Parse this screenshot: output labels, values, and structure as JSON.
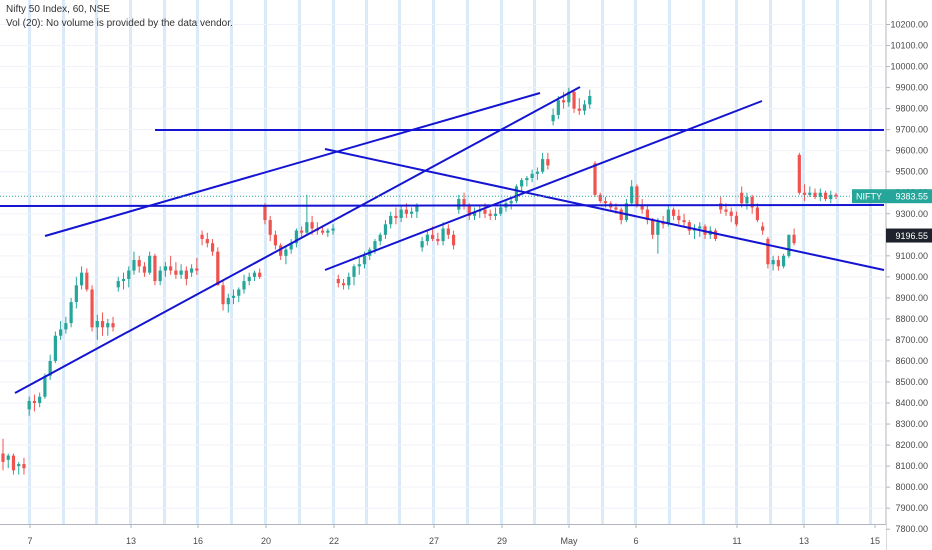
{
  "header": {
    "symbol": "Nifty 50 Index, 60, NSE",
    "volume_note": "Vol (20): No volume is provided by the data vendor."
  },
  "colors": {
    "up": "#26a69a",
    "down": "#ef5350",
    "trendline": "#1414d2",
    "session_band": "#dbeaf8",
    "last_price_line": "#26a69a",
    "badge_dark": "#1e222d"
  },
  "chart_data": {
    "type": "candlestick",
    "ylim": [
      7700,
      10350
    ],
    "y_ticks": [
      "10200.00",
      "10100.00",
      "10000.00",
      "9900.00",
      "9800.00",
      "9700.00",
      "9600.00",
      "9500.00",
      "9400.00",
      "9300.00",
      "9200.00",
      "9100.00",
      "9000.00",
      "8900.00",
      "8800.00",
      "8700.00",
      "8600.00",
      "8500.00",
      "8400.00",
      "8300.00",
      "8200.00",
      "8100.00",
      "8000.00",
      "7900.00",
      "7800.00"
    ],
    "x_labels": [
      "7",
      "13",
      "16",
      "20",
      "22",
      "27",
      "29",
      "May",
      "6",
      "11",
      "13",
      "15"
    ],
    "price_labels": [
      {
        "label": "NIFTY",
        "value": "9383.55",
        "style": "teal"
      },
      {
        "label": "",
        "value": "9196.55",
        "style": "dark"
      }
    ],
    "last_price": 9383.55,
    "key_price": 9196.55,
    "candles": [
      [
        8160,
        8230,
        8080,
        8120
      ],
      [
        8130,
        8160,
        8090,
        8150
      ],
      [
        8150,
        8160,
        8060,
        8080
      ],
      [
        8100,
        8120,
        8060,
        8110
      ],
      [
        8110,
        8140,
        8060,
        8090
      ],
      [
        8370,
        8430,
        8340,
        8410
      ],
      [
        8410,
        8440,
        8360,
        8400
      ],
      [
        8400,
        8450,
        8380,
        8430
      ],
      [
        8430,
        8540,
        8420,
        8530
      ],
      [
        8530,
        8630,
        8510,
        8600
      ],
      [
        8600,
        8740,
        8590,
        8720
      ],
      [
        8720,
        8790,
        8700,
        8750
      ],
      [
        8750,
        8810,
        8730,
        8780
      ],
      [
        8780,
        8900,
        8760,
        8880
      ],
      [
        8880,
        9000,
        8850,
        8960
      ],
      [
        8960,
        9050,
        8940,
        9020
      ],
      [
        9020,
        9040,
        8930,
        8940
      ],
      [
        8940,
        8960,
        8740,
        8760
      ],
      [
        8760,
        8820,
        8700,
        8790
      ],
      [
        8790,
        8830,
        8720,
        8760
      ],
      [
        8760,
        8800,
        8720,
        8780
      ],
      [
        8780,
        8810,
        8740,
        8760
      ],
      [
        8950,
        9000,
        8930,
        8980
      ],
      [
        8980,
        9020,
        8940,
        8990
      ],
      [
        8990,
        9050,
        8950,
        9030
      ],
      [
        9030,
        9120,
        9010,
        9080
      ],
      [
        9080,
        9100,
        9020,
        9050
      ],
      [
        9050,
        9070,
        9000,
        9020
      ],
      [
        9020,
        9120,
        9010,
        9100
      ],
      [
        9100,
        9110,
        8960,
        8980
      ],
      [
        8980,
        9050,
        8960,
        9030
      ],
      [
        9030,
        9070,
        9000,
        9050
      ],
      [
        9050,
        9100,
        9010,
        9030
      ],
      [
        9030,
        9070,
        8990,
        9010
      ],
      [
        9010,
        9060,
        8990,
        9030
      ],
      [
        9030,
        9050,
        8960,
        8990
      ],
      [
        9020,
        9060,
        9000,
        9040
      ],
      [
        9040,
        9090,
        9010,
        9030
      ],
      [
        9200,
        9220,
        9150,
        9180
      ],
      [
        9180,
        9210,
        9140,
        9160
      ],
      [
        9160,
        9180,
        9100,
        9120
      ],
      [
        9120,
        9140,
        8960,
        8960
      ],
      [
        8960,
        8980,
        8840,
        8870
      ],
      [
        8870,
        8920,
        8830,
        8900
      ],
      [
        8900,
        8940,
        8870,
        8910
      ],
      [
        8910,
        8950,
        8880,
        8940
      ],
      [
        8940,
        9010,
        8920,
        8980
      ],
      [
        8980,
        9020,
        8960,
        9000
      ],
      [
        9000,
        9030,
        8980,
        9020
      ],
      [
        9020,
        9040,
        8990,
        9000
      ],
      [
        9340,
        9350,
        9250,
        9270
      ],
      [
        9270,
        9290,
        9170,
        9200
      ],
      [
        9200,
        9220,
        9130,
        9150
      ],
      [
        9150,
        9160,
        9080,
        9100
      ],
      [
        9100,
        9150,
        9060,
        9130
      ],
      [
        9130,
        9180,
        9110,
        9160
      ],
      [
        9160,
        9230,
        9140,
        9220
      ],
      [
        9220,
        9240,
        9190,
        9210
      ],
      [
        9210,
        9390,
        9200,
        9260
      ],
      [
        9260,
        9290,
        9200,
        9230
      ],
      [
        9230,
        9260,
        9200,
        9220
      ],
      [
        9220,
        9240,
        9200,
        9210
      ],
      [
        9210,
        9230,
        9190,
        9220
      ],
      [
        9220,
        9250,
        9200,
        9230
      ],
      [
        8990,
        9010,
        8950,
        8970
      ],
      [
        8970,
        8990,
        8940,
        8960
      ],
      [
        8960,
        9020,
        8940,
        9000
      ],
      [
        9000,
        9060,
        8960,
        9050
      ],
      [
        9050,
        9090,
        9010,
        9060
      ],
      [
        9060,
        9120,
        9040,
        9100
      ],
      [
        9100,
        9140,
        9080,
        9130
      ],
      [
        9130,
        9180,
        9110,
        9170
      ],
      [
        9170,
        9210,
        9150,
        9200
      ],
      [
        9200,
        9270,
        9180,
        9250
      ],
      [
        9250,
        9310,
        9230,
        9290
      ],
      [
        9290,
        9330,
        9250,
        9280
      ],
      [
        9280,
        9340,
        9260,
        9320
      ],
      [
        9320,
        9350,
        9280,
        9300
      ],
      [
        9300,
        9330,
        9280,
        9310
      ],
      [
        9310,
        9350,
        9280,
        9340
      ],
      [
        9140,
        9190,
        9120,
        9170
      ],
      [
        9170,
        9220,
        9150,
        9200
      ],
      [
        9200,
        9240,
        9170,
        9180
      ],
      [
        9180,
        9210,
        9150,
        9170
      ],
      [
        9170,
        9260,
        9150,
        9230
      ],
      [
        9230,
        9250,
        9180,
        9200
      ],
      [
        9200,
        9220,
        9130,
        9150
      ],
      [
        9320,
        9390,
        9300,
        9370
      ],
      [
        9370,
        9400,
        9320,
        9340
      ],
      [
        9340,
        9350,
        9270,
        9290
      ],
      [
        9290,
        9330,
        9270,
        9310
      ],
      [
        9310,
        9340,
        9280,
        9320
      ],
      [
        9320,
        9350,
        9280,
        9300
      ],
      [
        9300,
        9320,
        9270,
        9290
      ],
      [
        9290,
        9330,
        9270,
        9300
      ],
      [
        9300,
        9350,
        9290,
        9330
      ],
      [
        9330,
        9360,
        9310,
        9350
      ],
      [
        9350,
        9380,
        9320,
        9360
      ],
      [
        9360,
        9440,
        9350,
        9430
      ],
      [
        9430,
        9470,
        9410,
        9460
      ],
      [
        9460,
        9480,
        9430,
        9470
      ],
      [
        9470,
        9510,
        9450,
        9490
      ],
      [
        9490,
        9520,
        9460,
        9500
      ],
      [
        9500,
        9590,
        9490,
        9560
      ],
      [
        9560,
        9590,
        9510,
        9530
      ],
      [
        9740,
        9800,
        9720,
        9770
      ],
      [
        9770,
        9860,
        9750,
        9840
      ],
      [
        9840,
        9880,
        9800,
        9830
      ],
      [
        9830,
        9900,
        9810,
        9880
      ],
      [
        9880,
        9890,
        9780,
        9800
      ],
      [
        9800,
        9850,
        9770,
        9790
      ],
      [
        9790,
        9840,
        9770,
        9820
      ],
      [
        9820,
        9890,
        9800,
        9860
      ],
      [
        9540,
        9550,
        9380,
        9390
      ],
      [
        9390,
        9400,
        9350,
        9360
      ],
      [
        9360,
        9380,
        9330,
        9350
      ],
      [
        9350,
        9360,
        9310,
        9330
      ],
      [
        9330,
        9350,
        9300,
        9320
      ],
      [
        9320,
        9330,
        9250,
        9270
      ],
      [
        9270,
        9370,
        9260,
        9350
      ],
      [
        9350,
        9460,
        9340,
        9430
      ],
      [
        9430,
        9440,
        9330,
        9340
      ],
      [
        9340,
        9370,
        9300,
        9320
      ],
      [
        9320,
        9340,
        9250,
        9270
      ],
      [
        9270,
        9280,
        9180,
        9200
      ],
      [
        9200,
        9280,
        9110,
        9260
      ],
      [
        9260,
        9290,
        9230,
        9250
      ],
      [
        9250,
        9340,
        9240,
        9320
      ],
      [
        9320,
        9330,
        9270,
        9290
      ],
      [
        9290,
        9320,
        9250,
        9270
      ],
      [
        9270,
        9300,
        9240,
        9260
      ],
      [
        9260,
        9270,
        9200,
        9220
      ],
      [
        9220,
        9250,
        9180,
        9230
      ],
      [
        9230,
        9260,
        9190,
        9240
      ],
      [
        9240,
        9250,
        9180,
        9200
      ],
      [
        9200,
        9240,
        9180,
        9220
      ],
      [
        9220,
        9230,
        9170,
        9180
      ],
      [
        9350,
        9380,
        9300,
        9320
      ],
      [
        9320,
        9350,
        9290,
        9310
      ],
      [
        9310,
        9330,
        9260,
        9290
      ],
      [
        9290,
        9310,
        9240,
        9250
      ],
      [
        9400,
        9430,
        9330,
        9350
      ],
      [
        9350,
        9400,
        9320,
        9380
      ],
      [
        9380,
        9390,
        9300,
        9330
      ],
      [
        9330,
        9350,
        9260,
        9270
      ],
      [
        9240,
        9260,
        9200,
        9220
      ],
      [
        9180,
        9190,
        9040,
        9060
      ],
      [
        9060,
        9100,
        9030,
        9080
      ],
      [
        9080,
        9100,
        9030,
        9050
      ],
      [
        9050,
        9110,
        9040,
        9100
      ],
      [
        9100,
        9200,
        9090,
        9200
      ],
      [
        9200,
        9230,
        9150,
        9160
      ],
      [
        9580,
        9590,
        9390,
        9400
      ],
      [
        9400,
        9440,
        9360,
        9390
      ],
      [
        9390,
        9430,
        9380,
        9400
      ],
      [
        9400,
        9420,
        9370,
        9380
      ],
      [
        9380,
        9420,
        9360,
        9400
      ],
      [
        9400,
        9410,
        9360,
        9370
      ],
      [
        9370,
        9410,
        9350,
        9390
      ],
      [
        9390,
        9400,
        9370,
        9383.55
      ]
    ]
  }
}
